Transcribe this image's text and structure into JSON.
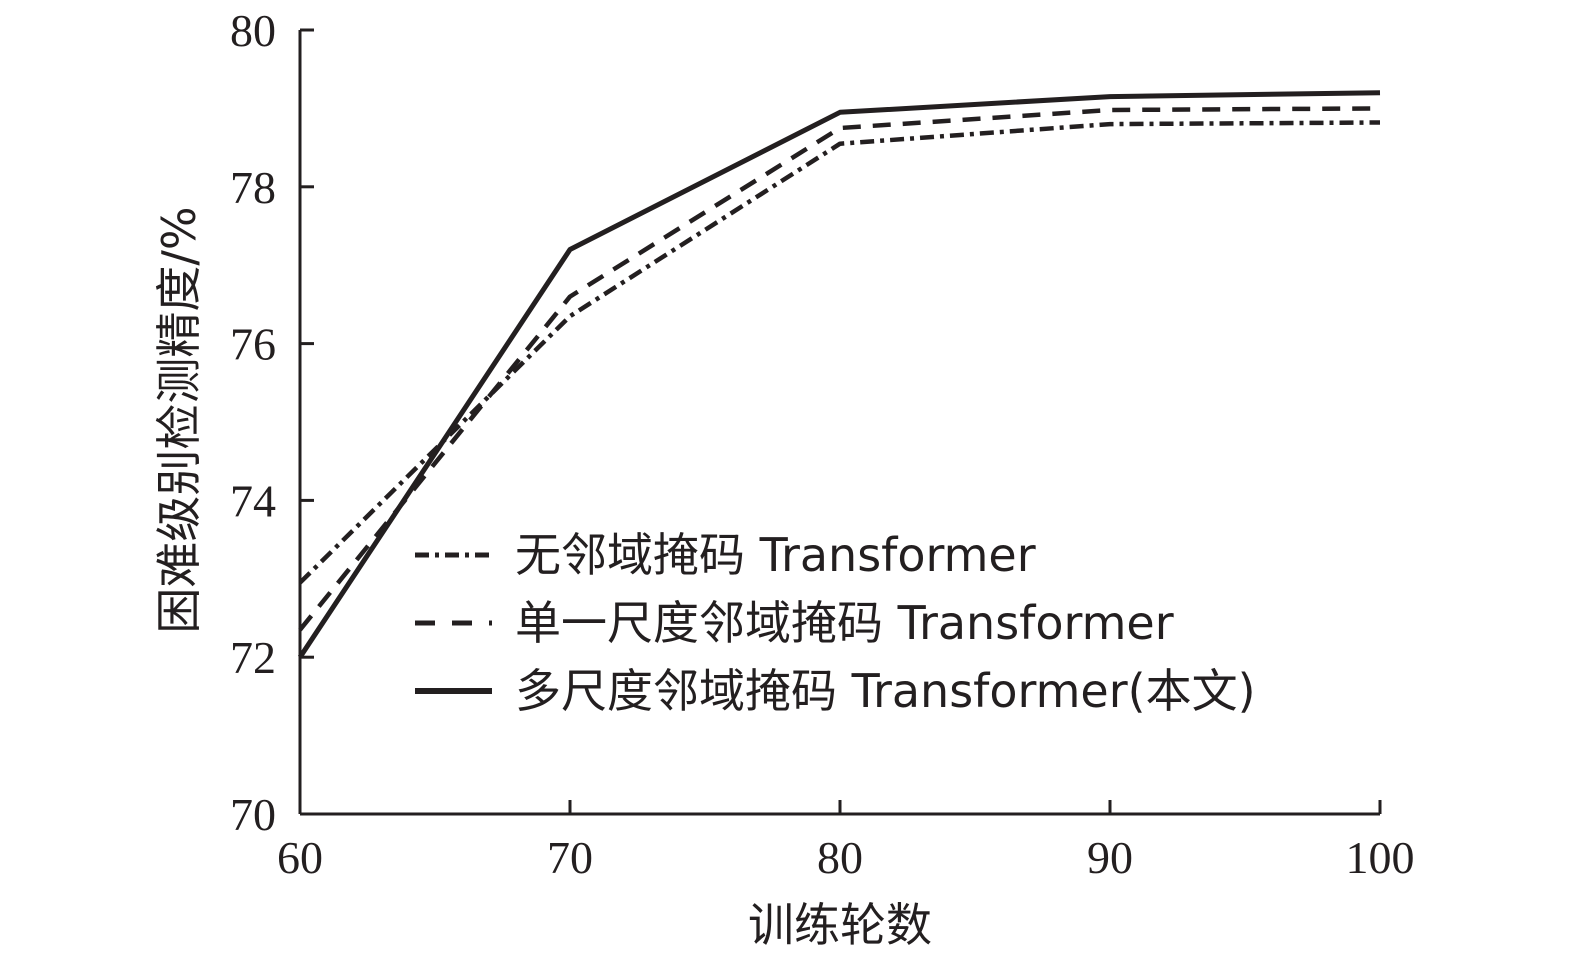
{
  "chart_data": {
    "type": "line",
    "xlabel": "训练轮数",
    "ylabel": "困难级别检测精度/%",
    "xlim": [
      60,
      100
    ],
    "ylim": [
      70,
      80
    ],
    "x_ticks": [
      "60",
      "70",
      "80",
      "90",
      "100"
    ],
    "y_ticks": [
      "70",
      "72",
      "74",
      "76",
      "78",
      "80"
    ],
    "grid": false,
    "legend_position": "center",
    "x": [
      60,
      70,
      80,
      90,
      100
    ],
    "series": [
      {
        "name": "无邻域掩码 Transformer",
        "style": "dashdot",
        "values": [
          72.95,
          76.35,
          78.55,
          78.8,
          78.82
        ]
      },
      {
        "name": "单一尺度邻域掩码 Transformer",
        "style": "dashed",
        "values": [
          72.35,
          76.6,
          78.75,
          78.98,
          79.0
        ]
      },
      {
        "name": "多尺度邻域掩码 Transformer(本文)",
        "style": "solid",
        "values": [
          72.0,
          77.2,
          78.95,
          79.15,
          79.2
        ]
      }
    ],
    "colors": {
      "line": "#231f20"
    }
  }
}
